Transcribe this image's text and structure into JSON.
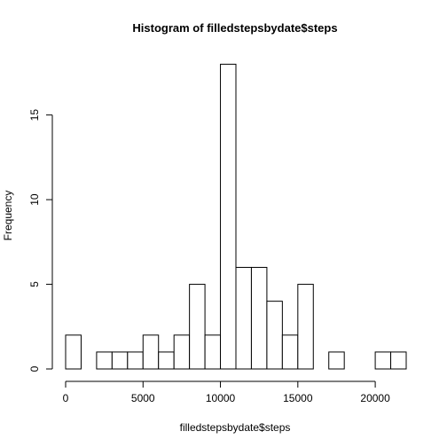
{
  "chart_data": {
    "type": "bar",
    "title": "Histogram of filledstepsbydate$steps",
    "xlabel": "filledstepsbydate$steps",
    "ylabel": "Frequency",
    "bin_width": 1000,
    "bins": [
      {
        "start": 0,
        "end": 1000,
        "count": 2
      },
      {
        "start": 1000,
        "end": 2000,
        "count": 0
      },
      {
        "start": 2000,
        "end": 3000,
        "count": 1
      },
      {
        "start": 3000,
        "end": 4000,
        "count": 1
      },
      {
        "start": 4000,
        "end": 5000,
        "count": 1
      },
      {
        "start": 5000,
        "end": 6000,
        "count": 2
      },
      {
        "start": 6000,
        "end": 7000,
        "count": 1
      },
      {
        "start": 7000,
        "end": 8000,
        "count": 2
      },
      {
        "start": 8000,
        "end": 9000,
        "count": 5
      },
      {
        "start": 9000,
        "end": 10000,
        "count": 2
      },
      {
        "start": 10000,
        "end": 11000,
        "count": 18
      },
      {
        "start": 11000,
        "end": 12000,
        "count": 6
      },
      {
        "start": 12000,
        "end": 13000,
        "count": 6
      },
      {
        "start": 13000,
        "end": 14000,
        "count": 4
      },
      {
        "start": 14000,
        "end": 15000,
        "count": 2
      },
      {
        "start": 15000,
        "end": 16000,
        "count": 5
      },
      {
        "start": 16000,
        "end": 17000,
        "count": 0
      },
      {
        "start": 17000,
        "end": 18000,
        "count": 1
      },
      {
        "start": 18000,
        "end": 19000,
        "count": 0
      },
      {
        "start": 19000,
        "end": 20000,
        "count": 0
      },
      {
        "start": 20000,
        "end": 21000,
        "count": 1
      },
      {
        "start": 21000,
        "end": 22000,
        "count": 1
      }
    ],
    "xlim": [
      0,
      22000
    ],
    "ylim": [
      0,
      18
    ],
    "x_ticks": [
      0,
      5000,
      10000,
      15000,
      20000
    ],
    "x_tick_labels": [
      "0",
      "5000",
      "10000",
      "15000",
      "20000"
    ],
    "y_ticks": [
      0,
      5,
      10,
      15
    ],
    "y_tick_labels": [
      "0",
      "5",
      "10",
      "15"
    ],
    "grid": false,
    "legend": "none"
  }
}
